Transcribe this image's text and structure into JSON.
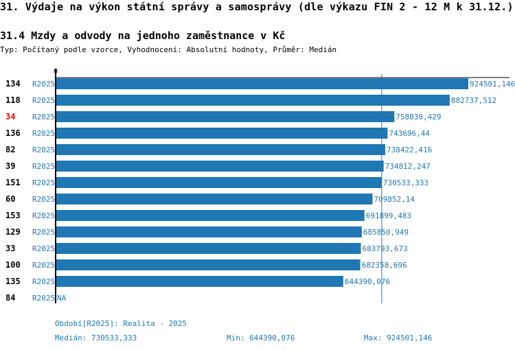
{
  "title": "31. Výdaje na výkon státní správy a samosprávy (dle výkazu FIN 2 - 12 M k 31.12.)",
  "subtitle": "31.4 Mzdy a odvody na jednoho zaměstnance v Kč",
  "description": "Typ: Počítaný podle vzorce, Vyhodnocení: Absolutní hodnoty, Průměr: Medián",
  "colors": {
    "bar": "#1f77b4",
    "highlight": "#ff0000",
    "text": "#1f77b4"
  },
  "chart_data": {
    "type": "bar",
    "orientation": "horizontal",
    "axis_zero_label": "0",
    "xlim": [
      0,
      924501.146
    ],
    "rows": [
      {
        "id": "134",
        "period": "R2025",
        "value": 924501.146,
        "label": "924501,146"
      },
      {
        "id": "118",
        "period": "R2025",
        "value": 882737.512,
        "label": "882737,512"
      },
      {
        "id": "34",
        "period": "R2025",
        "value": 758830.429,
        "label": "758830,429",
        "highlight": true
      },
      {
        "id": "136",
        "period": "R2025",
        "value": 743696.44,
        "label": "743696,44"
      },
      {
        "id": "82",
        "period": "R2025",
        "value": 738422.416,
        "label": "738422,416"
      },
      {
        "id": "39",
        "period": "R2025",
        "value": 734812.247,
        "label": "734812,247"
      },
      {
        "id": "151",
        "period": "R2025",
        "value": 730533.333,
        "label": "730533,333"
      },
      {
        "id": "60",
        "period": "R2025",
        "value": 709852.14,
        "label": "709852,14"
      },
      {
        "id": "153",
        "period": "R2025",
        "value": 691899.483,
        "label": "691899,483"
      },
      {
        "id": "129",
        "period": "R2025",
        "value": 685850.949,
        "label": "685850,949"
      },
      {
        "id": "33",
        "period": "R2025",
        "value": 683793.673,
        "label": "683793,673"
      },
      {
        "id": "100",
        "period": "R2025",
        "value": 682358.696,
        "label": "682358,696"
      },
      {
        "id": "135",
        "period": "R2025",
        "value": 644390.076,
        "label": "644390,076"
      },
      {
        "id": "84",
        "period": "R2025",
        "value": null,
        "label": "NA"
      }
    ],
    "median": 730533.333
  },
  "footer": {
    "period": "Období[R2025]: Realita - 2025",
    "median": "Medián: 730533,333",
    "min": "Min: 644390,076",
    "max": "Max: 924501,146"
  }
}
